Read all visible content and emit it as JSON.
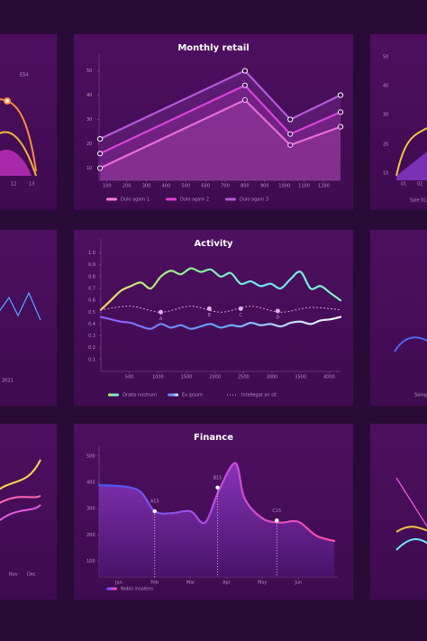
{
  "chart_data": [
    {
      "type": "line",
      "title": "Monthly retail",
      "smooth": false,
      "markers": true,
      "fill": true,
      "xlim": [
        60,
        1285
      ],
      "ylim": [
        5,
        55
      ],
      "xticks": [
        100,
        200,
        300,
        400,
        500,
        600,
        700,
        800,
        900,
        1000,
        1100,
        1200
      ],
      "yticks": [
        10,
        20,
        30,
        40,
        50
      ],
      "series": [
        {
          "name": "Dulo agam 1",
          "color": "#f77fd8",
          "x": [
            65,
            800,
            1030,
            1285
          ],
          "values": [
            10,
            38,
            19.5,
            27
          ]
        },
        {
          "name": "Dulo agam 2",
          "color": "#e23ddc",
          "x": [
            65,
            800,
            1030,
            1285
          ],
          "values": [
            16,
            44,
            24,
            33
          ]
        },
        {
          "name": "Dulo agam 3",
          "color": "#b55ad8",
          "x": [
            65,
            800,
            1030,
            1285
          ],
          "values": [
            22,
            50,
            30,
            40
          ]
        }
      ]
    },
    {
      "type": "line",
      "title": "Activity",
      "smooth": true,
      "xlim": [
        0,
        4200
      ],
      "ylim": [
        0,
        1.08
      ],
      "xticks": [
        500,
        1000,
        1500,
        2000,
        2500,
        3000,
        3500,
        4000
      ],
      "yticks": [
        {
          "value": 1,
          "label": "1.0"
        },
        0.9,
        0.8,
        0.7,
        0.6,
        0.5,
        0.4,
        0.3,
        0.2,
        0.1
      ],
      "series": [
        {
          "name": "Oratio nostrum",
          "colors": [
            "#f6e05e",
            "#8ef08a",
            "#6ee7f5",
            "#7ef0c8"
          ],
          "x": [
            0,
            175,
            350,
            525,
            700,
            875,
            1050,
            1225,
            1400,
            1575,
            1750,
            1925,
            2100,
            2275,
            2450,
            2625,
            2800,
            2975,
            3150,
            3325,
            3500,
            3675,
            3850,
            4025,
            4200
          ],
          "values": [
            0.52,
            0.6,
            0.68,
            0.72,
            0.75,
            0.7,
            0.8,
            0.85,
            0.82,
            0.87,
            0.84,
            0.86,
            0.8,
            0.83,
            0.74,
            0.76,
            0.72,
            0.74,
            0.7,
            0.78,
            0.84,
            0.7,
            0.72,
            0.66,
            0.6
          ]
        },
        {
          "name": "Ex ipsum",
          "colors": [
            "#8b5cf6",
            "#60a5fa",
            "#ffffff"
          ],
          "x": [
            0,
            175,
            350,
            525,
            700,
            875,
            1050,
            1225,
            1400,
            1575,
            1750,
            1925,
            2100,
            2275,
            2450,
            2625,
            2800,
            2975,
            3150,
            3325,
            3500,
            3675,
            3850,
            4025,
            4200
          ],
          "values": [
            0.46,
            0.44,
            0.42,
            0.41,
            0.38,
            0.36,
            0.4,
            0.37,
            0.39,
            0.36,
            0.38,
            0.4,
            0.37,
            0.39,
            0.38,
            0.41,
            0.39,
            0.4,
            0.38,
            0.41,
            0.42,
            0.4,
            0.43,
            0.44,
            0.46
          ]
        },
        {
          "name": "Intellegat an sit",
          "color": "#f0a6e6",
          "dash": true,
          "x": [
            0,
            525,
            1050,
            1575,
            2100,
            2625,
            3150,
            3675,
            4200
          ],
          "values": [
            0.52,
            0.55,
            0.5,
            0.55,
            0.5,
            0.55,
            0.5,
            0.54,
            0.52
          ]
        }
      ],
      "annotations": [
        {
          "text": "A",
          "x": 1050,
          "y": 0.5
        },
        {
          "text": "B",
          "x": 1900,
          "y": 0.53
        },
        {
          "text": "C",
          "x": 2450,
          "y": 0.53
        },
        {
          "text": "D",
          "x": 3100,
          "y": 0.51
        }
      ]
    },
    {
      "type": "area",
      "title": "Finance",
      "smooth": true,
      "xlim": [
        0.45,
        7.1
      ],
      "ylim": [
        40,
        520
      ],
      "xticks": [
        {
          "value": 1,
          "label": "Jan"
        },
        {
          "value": 2,
          "label": "Feb"
        },
        {
          "value": 3,
          "label": "Mar"
        },
        {
          "value": 4,
          "label": "Apr"
        },
        {
          "value": 5,
          "label": "May"
        },
        {
          "value": 6,
          "label": "Jun"
        }
      ],
      "yticks": [
        100,
        200,
        300,
        400,
        500
      ],
      "series": [
        {
          "name": "Nobis insolens",
          "colors": [
            "#3b5bf6",
            "#c04be0",
            "#ff4fa8"
          ],
          "x": [
            0.45,
            1.5,
            2,
            2.5,
            3,
            3.4,
            3.8,
            4.25,
            4.5,
            5,
            5.5,
            6,
            6.5,
            7
          ],
          "values": [
            390,
            373,
            290,
            283,
            290,
            247,
            373,
            473,
            340,
            263,
            247,
            250,
            197,
            177
          ]
        }
      ],
      "annotations": [
        {
          "text": "A15",
          "x": 2,
          "y": 290
        },
        {
          "text": "B15",
          "x": 3.75,
          "y": 380
        },
        {
          "text": "C15",
          "x": 5.4,
          "y": 255
        }
      ]
    }
  ],
  "left_panels": [
    [
      "E54",
      "12",
      "13"
    ],
    [
      "2021"
    ],
    [
      "Nov",
      "Dec"
    ]
  ],
  "right_panels": [
    [
      "50",
      "40",
      "30",
      "20",
      "10",
      "01",
      "02",
      "Sale 01"
    ],
    [
      "Saing"
    ]
  ]
}
